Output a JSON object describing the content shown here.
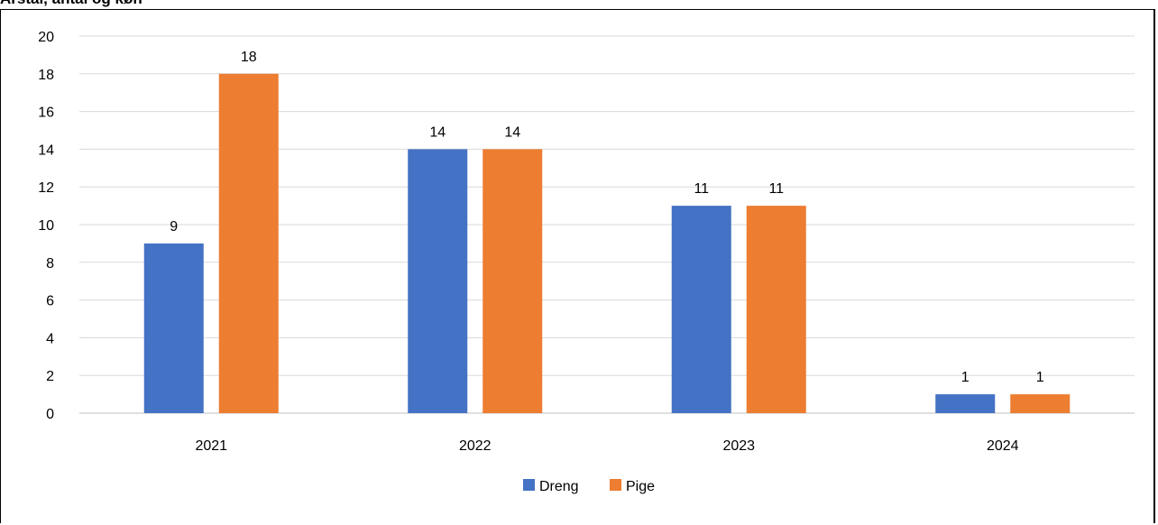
{
  "top_caption": "Årstal, antal og køn",
  "colors": {
    "dreng": "#4472C4",
    "pige": "#ED7D31",
    "gridline": "#D9D9D9",
    "axis_line": "#BFBFBF"
  },
  "chart_data": {
    "type": "bar",
    "title": "",
    "xlabel": "",
    "ylabel": "",
    "categories": [
      "2021",
      "2022",
      "2023",
      "2024"
    ],
    "series": [
      {
        "name": "Dreng",
        "values": [
          9,
          14,
          11,
          1
        ]
      },
      {
        "name": "Pige",
        "values": [
          18,
          14,
          11,
          1
        ]
      }
    ],
    "ylim": [
      0,
      20
    ],
    "yticks": [
      0,
      2,
      4,
      6,
      8,
      10,
      12,
      14,
      16,
      18,
      20
    ],
    "grid": true,
    "data_labels": true,
    "legend_position": "bottom"
  }
}
